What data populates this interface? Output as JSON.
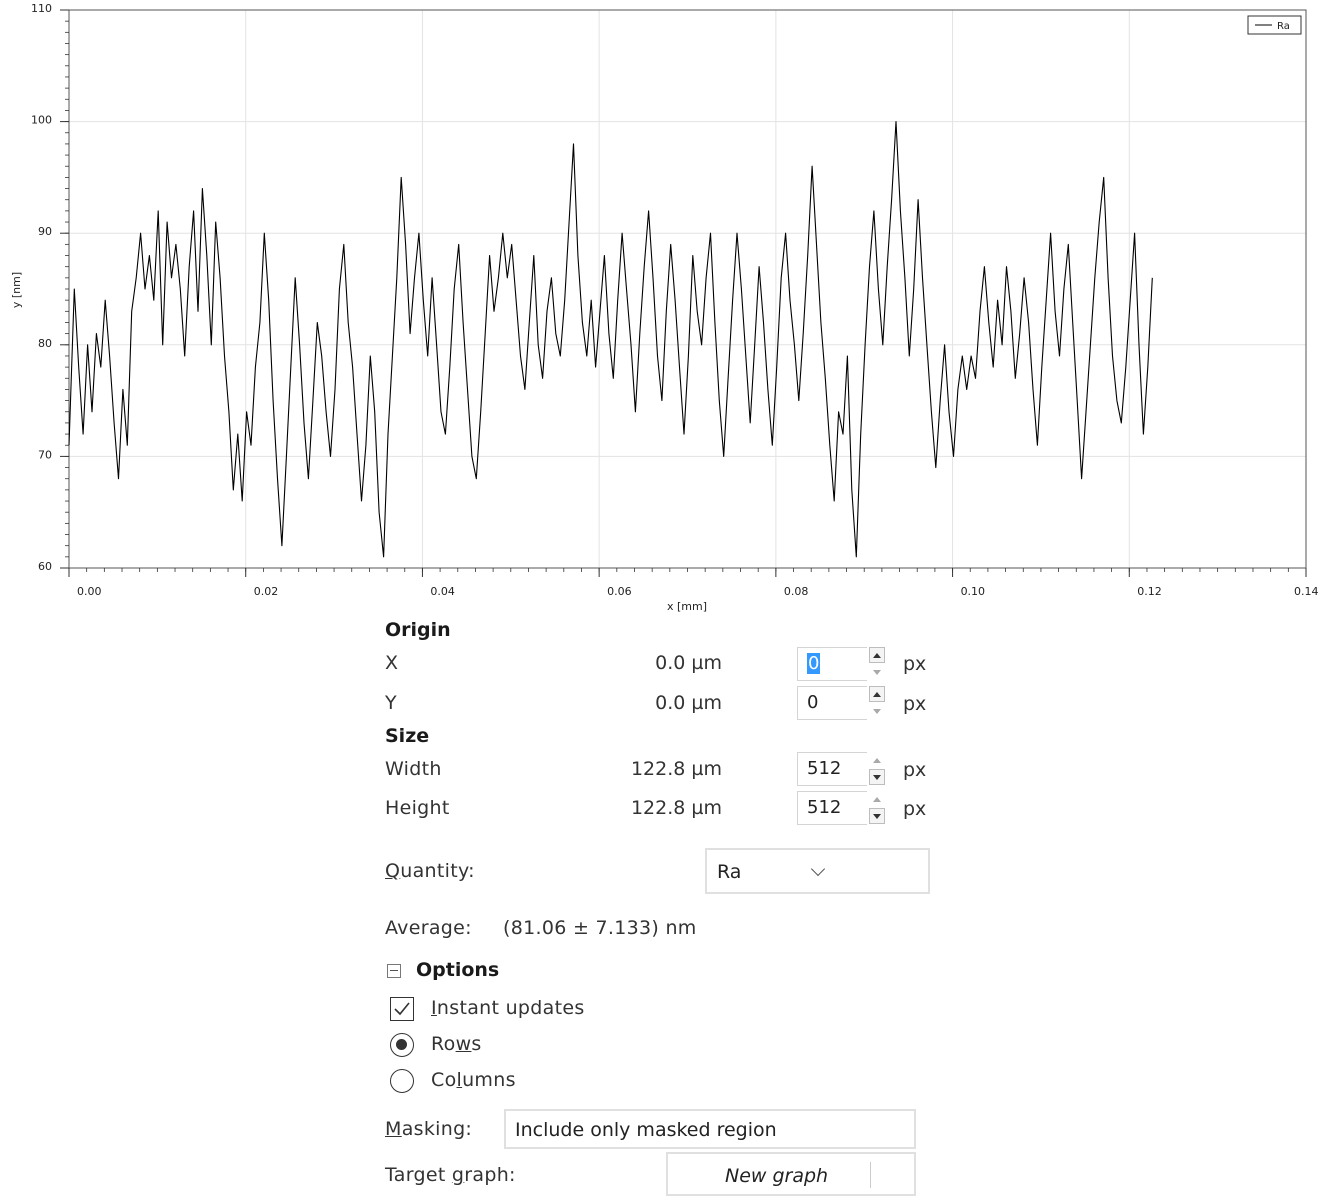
{
  "chart_data": {
    "type": "line",
    "xlabel": "x [mm]",
    "ylabel": "y [nm]",
    "xlim": [
      0,
      0.14
    ],
    "ylim": [
      60,
      110
    ],
    "xticks": [
      "0.00",
      "0.02",
      "0.04",
      "0.06",
      "0.08",
      "0.10",
      "0.12",
      "0.14"
    ],
    "yticks": [
      "60",
      "70",
      "80",
      "90",
      "100",
      "110"
    ],
    "grid": true,
    "legend_position": "top-right",
    "series": [
      {
        "name": "Ra",
        "color": "#000000",
        "points": [
          [
            0.0,
            71
          ],
          [
            0.0006,
            85
          ],
          [
            0.0011,
            78
          ],
          [
            0.0016,
            72
          ],
          [
            0.0021,
            80
          ],
          [
            0.0026,
            74
          ],
          [
            0.0031,
            81
          ],
          [
            0.0036,
            78
          ],
          [
            0.0041,
            84
          ],
          [
            0.0046,
            79
          ],
          [
            0.0051,
            73
          ],
          [
            0.0056,
            68
          ],
          [
            0.0061,
            76
          ],
          [
            0.0066,
            71
          ],
          [
            0.0071,
            83
          ],
          [
            0.0076,
            86
          ],
          [
            0.0081,
            90
          ],
          [
            0.0086,
            85
          ],
          [
            0.0091,
            88
          ],
          [
            0.0096,
            84
          ],
          [
            0.0101,
            92
          ],
          [
            0.0106,
            80
          ],
          [
            0.0111,
            91
          ],
          [
            0.0116,
            86
          ],
          [
            0.0121,
            89
          ],
          [
            0.0126,
            85
          ],
          [
            0.0131,
            79
          ],
          [
            0.0136,
            87
          ],
          [
            0.0141,
            92
          ],
          [
            0.0146,
            83
          ],
          [
            0.0151,
            94
          ],
          [
            0.0156,
            88
          ],
          [
            0.0161,
            80
          ],
          [
            0.0166,
            91
          ],
          [
            0.0171,
            86
          ],
          [
            0.0176,
            79
          ],
          [
            0.0181,
            74
          ],
          [
            0.0186,
            67
          ],
          [
            0.0191,
            72
          ],
          [
            0.0196,
            66
          ],
          [
            0.0201,
            74
          ],
          [
            0.0206,
            71
          ],
          [
            0.0211,
            78
          ],
          [
            0.0216,
            82
          ],
          [
            0.0221,
            90
          ],
          [
            0.0226,
            84
          ],
          [
            0.0231,
            75
          ],
          [
            0.0236,
            68
          ],
          [
            0.0241,
            62
          ],
          [
            0.0246,
            70
          ],
          [
            0.0251,
            78
          ],
          [
            0.0256,
            86
          ],
          [
            0.0261,
            80
          ],
          [
            0.0266,
            73
          ],
          [
            0.0271,
            68
          ],
          [
            0.0276,
            75
          ],
          [
            0.0281,
            82
          ],
          [
            0.0286,
            79
          ],
          [
            0.0291,
            74
          ],
          [
            0.0296,
            70
          ],
          [
            0.0301,
            76
          ],
          [
            0.0306,
            85
          ],
          [
            0.0311,
            89
          ],
          [
            0.0316,
            82
          ],
          [
            0.0321,
            78
          ],
          [
            0.0326,
            72
          ],
          [
            0.0331,
            66
          ],
          [
            0.0336,
            71
          ],
          [
            0.0341,
            79
          ],
          [
            0.0346,
            74
          ],
          [
            0.0351,
            65
          ],
          [
            0.0356,
            61
          ],
          [
            0.0361,
            72
          ],
          [
            0.0366,
            79
          ],
          [
            0.0371,
            86
          ],
          [
            0.0376,
            95
          ],
          [
            0.0381,
            89
          ],
          [
            0.0386,
            81
          ],
          [
            0.0391,
            86
          ],
          [
            0.0396,
            90
          ],
          [
            0.0401,
            84
          ],
          [
            0.0406,
            79
          ],
          [
            0.0411,
            86
          ],
          [
            0.0416,
            80
          ],
          [
            0.0421,
            74
          ],
          [
            0.0426,
            72
          ],
          [
            0.0431,
            78
          ],
          [
            0.0436,
            85
          ],
          [
            0.0441,
            89
          ],
          [
            0.0446,
            82
          ],
          [
            0.0451,
            76
          ],
          [
            0.0456,
            70
          ],
          [
            0.0461,
            68
          ],
          [
            0.0466,
            74
          ],
          [
            0.0471,
            81
          ],
          [
            0.0476,
            88
          ],
          [
            0.0481,
            83
          ],
          [
            0.0486,
            86
          ],
          [
            0.0491,
            90
          ],
          [
            0.0496,
            86
          ],
          [
            0.0501,
            89
          ],
          [
            0.0506,
            84
          ],
          [
            0.0511,
            79
          ],
          [
            0.0516,
            76
          ],
          [
            0.0521,
            82
          ],
          [
            0.0526,
            88
          ],
          [
            0.0531,
            80
          ],
          [
            0.0536,
            77
          ],
          [
            0.0541,
            83
          ],
          [
            0.0546,
            86
          ],
          [
            0.0551,
            81
          ],
          [
            0.0556,
            79
          ],
          [
            0.0561,
            84
          ],
          [
            0.0566,
            91
          ],
          [
            0.0571,
            98
          ],
          [
            0.0576,
            88
          ],
          [
            0.0581,
            82
          ],
          [
            0.0586,
            79
          ],
          [
            0.0591,
            84
          ],
          [
            0.0596,
            78
          ],
          [
            0.0601,
            83
          ],
          [
            0.0606,
            88
          ],
          [
            0.0611,
            81
          ],
          [
            0.0616,
            77
          ],
          [
            0.0621,
            84
          ],
          [
            0.0626,
            90
          ],
          [
            0.0631,
            85
          ],
          [
            0.0636,
            80
          ],
          [
            0.0641,
            74
          ],
          [
            0.0646,
            81
          ],
          [
            0.0651,
            87
          ],
          [
            0.0656,
            92
          ],
          [
            0.0661,
            86
          ],
          [
            0.0666,
            79
          ],
          [
            0.0671,
            75
          ],
          [
            0.0676,
            83
          ],
          [
            0.0681,
            89
          ],
          [
            0.0686,
            84
          ],
          [
            0.0691,
            78
          ],
          [
            0.0696,
            72
          ],
          [
            0.0701,
            79
          ],
          [
            0.0706,
            88
          ],
          [
            0.0711,
            83
          ],
          [
            0.0716,
            80
          ],
          [
            0.0721,
            86
          ],
          [
            0.0726,
            90
          ],
          [
            0.0731,
            82
          ],
          [
            0.0736,
            75
          ],
          [
            0.0741,
            70
          ],
          [
            0.0746,
            77
          ],
          [
            0.0751,
            84
          ],
          [
            0.0756,
            90
          ],
          [
            0.0761,
            85
          ],
          [
            0.0766,
            79
          ],
          [
            0.0771,
            73
          ],
          [
            0.0776,
            80
          ],
          [
            0.0781,
            87
          ],
          [
            0.0786,
            82
          ],
          [
            0.0791,
            76
          ],
          [
            0.0796,
            71
          ],
          [
            0.0801,
            78
          ],
          [
            0.0806,
            86
          ],
          [
            0.0811,
            90
          ],
          [
            0.0816,
            84
          ],
          [
            0.0821,
            80
          ],
          [
            0.0826,
            75
          ],
          [
            0.0831,
            81
          ],
          [
            0.0836,
            88
          ],
          [
            0.0841,
            96
          ],
          [
            0.0846,
            89
          ],
          [
            0.0851,
            82
          ],
          [
            0.0856,
            77
          ],
          [
            0.0861,
            71
          ],
          [
            0.0866,
            66
          ],
          [
            0.0871,
            74
          ],
          [
            0.0876,
            72
          ],
          [
            0.0881,
            79
          ],
          [
            0.0886,
            67
          ],
          [
            0.0891,
            61
          ],
          [
            0.0896,
            72
          ],
          [
            0.0901,
            80
          ],
          [
            0.0906,
            87
          ],
          [
            0.0911,
            92
          ],
          [
            0.0916,
            85
          ],
          [
            0.0921,
            80
          ],
          [
            0.0926,
            87
          ],
          [
            0.0931,
            93
          ],
          [
            0.0936,
            100
          ],
          [
            0.0941,
            92
          ],
          [
            0.0946,
            86
          ],
          [
            0.0951,
            79
          ],
          [
            0.0956,
            85
          ],
          [
            0.0961,
            93
          ],
          [
            0.0966,
            86
          ],
          [
            0.0971,
            80
          ],
          [
            0.0976,
            74
          ],
          [
            0.0981,
            69
          ],
          [
            0.0986,
            75
          ],
          [
            0.0991,
            80
          ],
          [
            0.0996,
            74
          ],
          [
            0.1001,
            70
          ],
          [
            0.1006,
            76
          ],
          [
            0.1011,
            79
          ],
          [
            0.1016,
            76
          ],
          [
            0.1021,
            79
          ],
          [
            0.1026,
            77
          ],
          [
            0.1031,
            83
          ],
          [
            0.1036,
            87
          ],
          [
            0.1041,
            82
          ],
          [
            0.1046,
            78
          ],
          [
            0.1051,
            84
          ],
          [
            0.1056,
            80
          ],
          [
            0.1061,
            87
          ],
          [
            0.1066,
            83
          ],
          [
            0.1071,
            77
          ],
          [
            0.1076,
            81
          ],
          [
            0.1081,
            86
          ],
          [
            0.1086,
            82
          ],
          [
            0.1091,
            76
          ],
          [
            0.1096,
            71
          ],
          [
            0.1101,
            78
          ],
          [
            0.1106,
            84
          ],
          [
            0.1111,
            90
          ],
          [
            0.1116,
            83
          ],
          [
            0.1121,
            79
          ],
          [
            0.1126,
            85
          ],
          [
            0.1131,
            89
          ],
          [
            0.1136,
            82
          ],
          [
            0.1141,
            75
          ],
          [
            0.1146,
            68
          ],
          [
            0.1151,
            74
          ],
          [
            0.1156,
            80
          ],
          [
            0.1161,
            86
          ],
          [
            0.1166,
            91
          ],
          [
            0.1171,
            95
          ],
          [
            0.1176,
            86
          ],
          [
            0.1181,
            79
          ],
          [
            0.1186,
            75
          ],
          [
            0.1191,
            73
          ],
          [
            0.1196,
            78
          ],
          [
            0.1201,
            84
          ],
          [
            0.1206,
            90
          ],
          [
            0.1211,
            80
          ],
          [
            0.1216,
            72
          ],
          [
            0.1221,
            78
          ],
          [
            0.1226,
            86
          ]
        ]
      }
    ]
  },
  "origin": {
    "title": "Origin",
    "x": {
      "label": "X",
      "value": "0.0 µm",
      "px": "0",
      "unit": "px"
    },
    "y": {
      "label": "Y",
      "value": "0.0 µm",
      "px": "0",
      "unit": "px"
    }
  },
  "size": {
    "title": "Size",
    "width": {
      "label": "Width",
      "value": "122.8 µm",
      "px": "512",
      "unit": "px"
    },
    "height": {
      "label": "Height",
      "value": "122.8 µm",
      "px": "512",
      "unit": "px"
    }
  },
  "quantity": {
    "label_q": "Q",
    "label_rest": "uantity:",
    "selected": "Ra"
  },
  "average": {
    "label": "Average:",
    "value": "(81.06 ± 7.133) nm"
  },
  "options": {
    "title": "Options",
    "instant_updates": {
      "u": "I",
      "rest": "nstant updates",
      "checked": true
    },
    "rows": {
      "pre": "Ro",
      "u": "w",
      "post": "s",
      "selected": true
    },
    "columns": {
      "pre": "Co",
      "u": "l",
      "post": "umns",
      "selected": false
    }
  },
  "masking": {
    "label_u": "M",
    "label_rest": "asking:",
    "value": "Include only masked region"
  },
  "target_graph": {
    "label_pre": "Target ",
    "label_u": "g",
    "label_post": "raph:",
    "value": "New graph"
  }
}
